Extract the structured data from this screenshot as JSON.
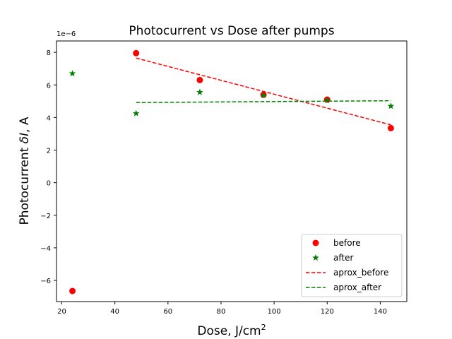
{
  "chart_data": {
    "type": "scatter",
    "title": "Photocurrent vs Dose after pumps",
    "xlabel": {
      "main": "Dose, J/cm",
      "sup": "2"
    },
    "ylabel": {
      "pre": "Photocurrent ",
      "italic": "δI",
      "post": ", A"
    },
    "y_offset_label": "1e−6",
    "xlim": [
      18,
      150
    ],
    "ylim": [
      -7.3,
      8.7
    ],
    "x_ticks": [
      20,
      40,
      60,
      80,
      100,
      120,
      140
    ],
    "y_ticks": [
      -6,
      -4,
      -2,
      0,
      2,
      4,
      6,
      8
    ],
    "y_tick_labels": [
      "−6",
      "−4",
      "−2",
      "0",
      "2",
      "4",
      "6",
      "8"
    ],
    "legend_position": "lower right",
    "series": [
      {
        "name": "before",
        "kind": "marker",
        "marker": "circle",
        "color": "#ff0000",
        "x": [
          24,
          48,
          72,
          96,
          120,
          144
        ],
        "y": [
          -6.65,
          7.95,
          6.3,
          5.4,
          5.1,
          3.35
        ]
      },
      {
        "name": "after",
        "kind": "marker",
        "marker": "star",
        "color": "#008000",
        "x": [
          24,
          48,
          72,
          96,
          120,
          144
        ],
        "y": [
          6.7,
          4.25,
          5.55,
          5.35,
          5.05,
          4.7
        ]
      },
      {
        "name": "aprox_before",
        "kind": "dashed-line",
        "color": "#ff0000",
        "x": [
          48,
          144
        ],
        "y": [
          7.65,
          3.55
        ]
      },
      {
        "name": "aprox_after",
        "kind": "dashed-line",
        "color": "#008000",
        "x": [
          48,
          144
        ],
        "y": [
          4.92,
          5.03
        ]
      }
    ]
  }
}
